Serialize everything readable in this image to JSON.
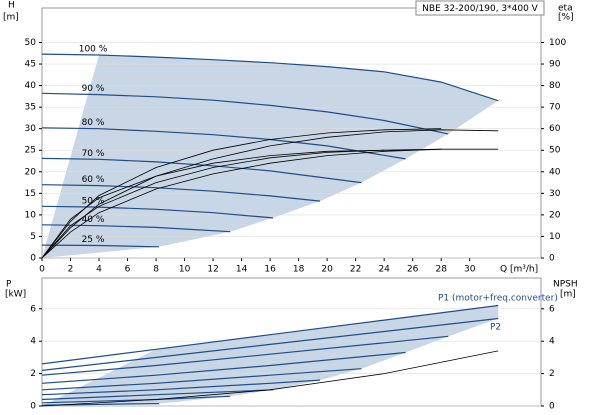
{
  "chart_data": [
    {
      "type": "line",
      "title": "NBE 32-200/190, 3*400 V",
      "y_label": "H",
      "y_unit": "[m]",
      "y2_label": "eta",
      "y2_unit": "[%]",
      "x_label": "Q [m³/h]",
      "xlim": [
        0,
        35
      ],
      "xticks": [
        0,
        2,
        4,
        6,
        8,
        10,
        12,
        14,
        16,
        18,
        20,
        22,
        24,
        26,
        28,
        30
      ],
      "ylim": [
        0,
        58
      ],
      "yticks": [
        0,
        5,
        10,
        15,
        20,
        25,
        30,
        35,
        40,
        45,
        50
      ],
      "y2lim": [
        0,
        116
      ],
      "y2ticks": [
        0,
        10,
        20,
        30,
        40,
        50,
        60,
        70,
        80,
        90,
        100
      ],
      "region_color": "#c8d6e5",
      "series": [
        {
          "name": "100 %",
          "color": "#1f4e8c",
          "x": [
            0,
            4,
            8,
            12,
            16,
            20,
            24,
            28,
            32
          ],
          "values": [
            47.3,
            47.1,
            46.6,
            46.0,
            45.3,
            44.4,
            43.2,
            40.8,
            36.5
          ]
        },
        {
          "name": "90 %",
          "color": "#1f4e8c",
          "x": [
            0,
            4,
            8,
            12,
            16,
            20,
            24,
            28.5
          ],
          "values": [
            38.2,
            37.9,
            37.4,
            36.6,
            35.4,
            33.9,
            31.9,
            28.8
          ]
        },
        {
          "name": "80 %",
          "color": "#1f4e8c",
          "x": [
            0,
            4,
            8,
            12,
            16,
            20,
            25.5
          ],
          "values": [
            30.2,
            30.0,
            29.4,
            28.6,
            27.5,
            26.0,
            23.0
          ]
        },
        {
          "name": "70 %",
          "color": "#1f4e8c",
          "x": [
            0,
            4,
            8,
            12,
            16,
            22.4
          ],
          "values": [
            23.1,
            22.9,
            22.3,
            21.4,
            20.2,
            17.5
          ]
        },
        {
          "name": "60 %",
          "color": "#1f4e8c",
          "x": [
            0,
            4,
            8,
            12,
            16,
            19.5
          ],
          "values": [
            17.0,
            16.8,
            16.3,
            15.5,
            14.4,
            13.2
          ]
        },
        {
          "name": "50 %",
          "color": "#1f4e8c",
          "x": [
            0,
            4,
            8,
            12,
            16.2
          ],
          "values": [
            12.0,
            11.8,
            11.3,
            10.5,
            9.3
          ]
        },
        {
          "name": "40 %",
          "color": "#1f4e8c",
          "x": [
            0,
            4,
            8,
            13.2
          ],
          "values": [
            7.7,
            7.5,
            7.1,
            6.1
          ]
        },
        {
          "name": "25 %",
          "color": "#1f4e8c",
          "x": [
            0,
            4,
            8.2
          ],
          "values": [
            3.0,
            2.9,
            2.6
          ]
        },
        {
          "color": "#000000",
          "axis": "y2",
          "x": [
            0,
            2,
            4,
            8,
            12,
            16,
            20,
            24,
            28,
            32
          ],
          "values": [
            0,
            14,
            25,
            38,
            46,
            52,
            56,
            58.5,
            59.5,
            59
          ]
        },
        {
          "color": "#000000",
          "axis": "y2",
          "x": [
            0,
            2,
            4,
            8,
            12,
            16,
            20,
            24,
            28
          ],
          "values": [
            0,
            17,
            29,
            42,
            50,
            55,
            58,
            59.5,
            60
          ]
        },
        {
          "color": "#000000",
          "axis": "y2",
          "x": [
            0,
            2,
            4,
            8,
            12,
            16,
            20,
            24,
            28,
            32
          ],
          "values": [
            0,
            12,
            21,
            32,
            39,
            44,
            47.5,
            49.5,
            50.5,
            50.5
          ]
        },
        {
          "color": "#000000",
          "axis": "y2",
          "x": [
            0,
            2,
            4,
            8,
            12,
            16,
            20,
            24,
            28
          ],
          "values": [
            0,
            15,
            24,
            35,
            42,
            46.5,
            49,
            50,
            50.5
          ]
        },
        {
          "color": "#000000",
          "axis": "y2",
          "x": [
            0,
            2,
            4,
            8,
            12,
            16,
            20,
            24
          ],
          "values": [
            0,
            18,
            28,
            38,
            44,
            47.5,
            49.5,
            50
          ]
        }
      ]
    },
    {
      "type": "line",
      "y_label": "P",
      "y_unit": "[kW]",
      "y2_label": "NPSH",
      "y2_unit": "[m]",
      "annotations": [
        "P1 (motor+freq.converter)",
        "P2"
      ],
      "xlim": [
        0,
        35
      ],
      "ylim": [
        0,
        7.9
      ],
      "yticks": [
        0,
        2,
        4,
        6
      ],
      "y2lim": [
        0,
        7.9
      ],
      "y2ticks": [
        0,
        2,
        4,
        6
      ],
      "region_color": "#c8d6e5",
      "series": [
        {
          "color": "#1f4e8c",
          "x": [
            0,
            8,
            16,
            24,
            32
          ],
          "values": [
            2.6,
            3.5,
            4.4,
            5.3,
            6.2
          ]
        },
        {
          "color": "#1f4e8c",
          "x": [
            0,
            8,
            16,
            24,
            32
          ],
          "values": [
            2.2,
            3.0,
            3.8,
            4.6,
            5.4
          ]
        },
        {
          "color": "#1f4e8c",
          "x": [
            0,
            8,
            16,
            24,
            28.5
          ],
          "values": [
            1.9,
            2.5,
            3.2,
            3.9,
            4.3
          ]
        },
        {
          "color": "#1f4e8c",
          "x": [
            0,
            8,
            16,
            25.5
          ],
          "values": [
            1.4,
            1.9,
            2.5,
            3.3
          ]
        },
        {
          "color": "#1f4e8c",
          "x": [
            0,
            8,
            16,
            22.4
          ],
          "values": [
            1.0,
            1.4,
            1.9,
            2.3
          ]
        },
        {
          "color": "#1f4e8c",
          "x": [
            0,
            8,
            16,
            19.5
          ],
          "values": [
            0.7,
            1.0,
            1.4,
            1.6
          ]
        },
        {
          "color": "#1f4e8c",
          "x": [
            0,
            8,
            16.2
          ],
          "values": [
            0.4,
            0.7,
            1.0
          ]
        },
        {
          "color": "#1f4e8c",
          "x": [
            0,
            8,
            13.2
          ],
          "values": [
            0.2,
            0.4,
            0.6
          ]
        },
        {
          "color": "#1f4e8c",
          "x": [
            0,
            8.2
          ],
          "values": [
            0.05,
            0.15
          ]
        },
        {
          "color": "#000000",
          "axis": "y2",
          "x": [
            0,
            8,
            16,
            24,
            32
          ],
          "values": [
            0,
            0.4,
            1.0,
            2.0,
            3.4
          ]
        }
      ]
    }
  ]
}
